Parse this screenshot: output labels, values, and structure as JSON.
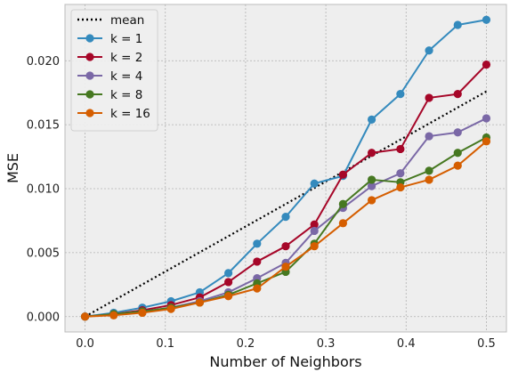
{
  "chart_data": {
    "type": "line",
    "xlabel": "Number of Neighbors",
    "ylabel": "MSE",
    "xlim": [
      -0.025,
      0.525
    ],
    "ylim": [
      -0.0012,
      0.0244
    ],
    "x_ticks": [
      0.0,
      0.1,
      0.2,
      0.3,
      0.4,
      0.5
    ],
    "x_tick_labels": [
      "0.0",
      "0.1",
      "0.2",
      "0.3",
      "0.4",
      "0.5"
    ],
    "y_ticks": [
      0.0,
      0.005,
      0.01,
      0.015,
      0.02
    ],
    "y_tick_labels": [
      "0.000",
      "0.005",
      "0.010",
      "0.015",
      "0.020"
    ],
    "grid": true,
    "legend_position": "top-left",
    "x": [
      0.0,
      0.0357,
      0.0714,
      0.1071,
      0.1429,
      0.1786,
      0.2143,
      0.25,
      0.2857,
      0.3214,
      0.3571,
      0.3929,
      0.4286,
      0.4643,
      0.5
    ],
    "series": [
      {
        "name": "mean",
        "style": "dotted",
        "markers": false,
        "color": "#000000",
        "x": [
          0.0,
          0.5
        ],
        "values": [
          0.0,
          0.0176
        ]
      },
      {
        "name": "k = 1",
        "color": "#348ABD",
        "values": [
          0.0,
          0.0003,
          0.0007,
          0.0012,
          0.0019,
          0.0034,
          0.0057,
          0.0078,
          0.0104,
          0.011,
          0.0154,
          0.0174,
          0.0208,
          0.0228,
          0.0232
        ]
      },
      {
        "name": "k = 2",
        "color": "#A60628",
        "values": [
          0.0,
          0.0002,
          0.0005,
          0.0009,
          0.0015,
          0.0027,
          0.0043,
          0.0055,
          0.0072,
          0.0111,
          0.0128,
          0.0131,
          0.0171,
          0.0174,
          0.0197
        ]
      },
      {
        "name": "k = 4",
        "color": "#7A68A6",
        "values": [
          0.0,
          0.0002,
          0.0004,
          0.0007,
          0.0012,
          0.0019,
          0.003,
          0.0042,
          0.0067,
          0.0085,
          0.0102,
          0.0112,
          0.0141,
          0.0144,
          0.0155
        ]
      },
      {
        "name": "k = 8",
        "color": "#467821",
        "values": [
          0.0,
          0.0002,
          0.0004,
          0.0007,
          0.0011,
          0.0017,
          0.0026,
          0.0035,
          0.0057,
          0.0088,
          0.0107,
          0.0105,
          0.0114,
          0.0128,
          0.014
        ]
      },
      {
        "name": "k = 16",
        "color": "#D55E00",
        "values": [
          0.0,
          0.0001,
          0.0003,
          0.0006,
          0.0011,
          0.0016,
          0.0022,
          0.0039,
          0.0055,
          0.0073,
          0.0091,
          0.0101,
          0.0107,
          0.0118,
          0.0137
        ]
      }
    ]
  }
}
